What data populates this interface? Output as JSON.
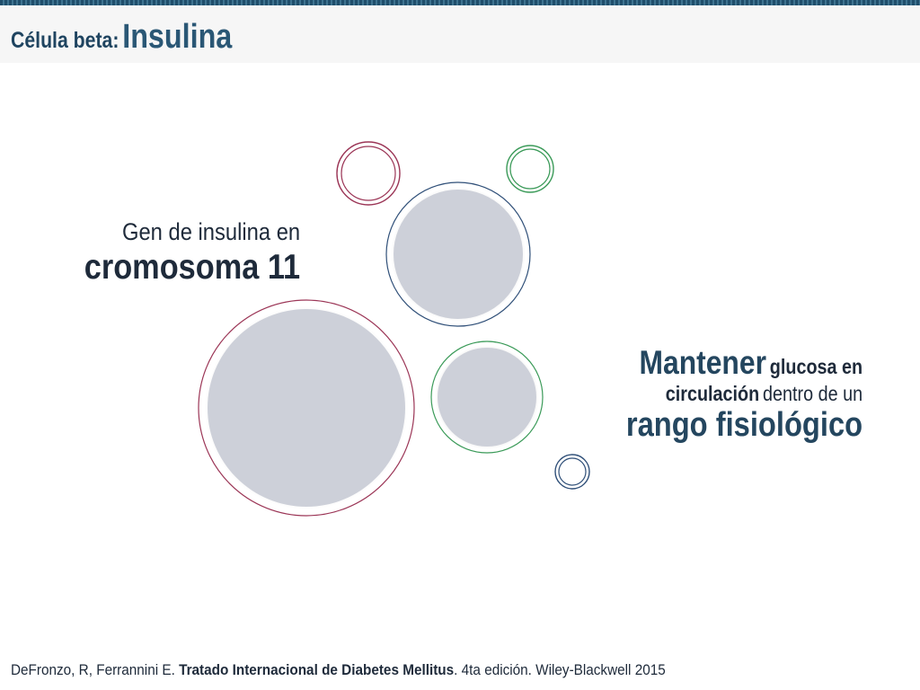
{
  "header": {
    "title_prefix": "Célula beta:",
    "title_main": "Insulina"
  },
  "left_text": {
    "line1": "Gen de insulina en",
    "line2": "cromosoma 11"
  },
  "right_text": {
    "word_mantener": "Mantener",
    "word_glucosa_en": "glucosa en",
    "word_circulacion": "circulación",
    "phrase_dentro": "dentro de un",
    "phrase_rango": "rango fisiológico"
  },
  "footer": {
    "authors": "DeFronzo, R, Ferrannini E.",
    "book": "Tratado Internacional de Diabetes Mellitus",
    "edition": ". 4ta edición. Wiley-Blackwell 2015"
  },
  "colors": {
    "accent_dark_blue": "#24465f",
    "bubble_fill": "#cdd0d9",
    "ring_red": "#9b3556",
    "ring_blue": "#2f4f78",
    "ring_green": "#3a9a58"
  }
}
